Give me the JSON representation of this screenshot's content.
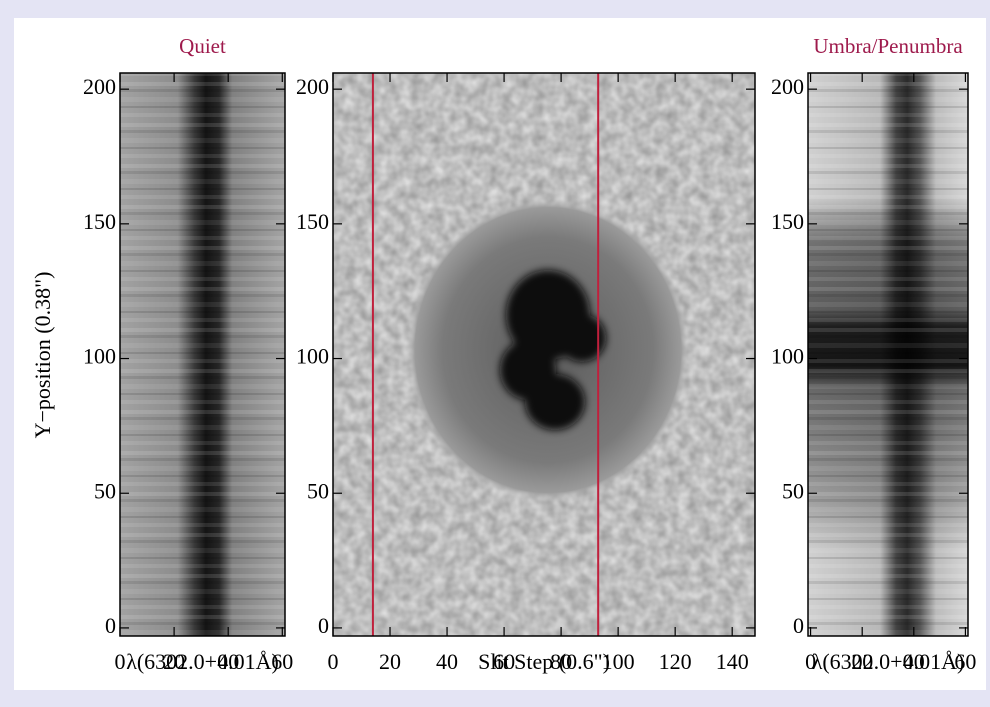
{
  "chart_data": [
    {
      "type": "image",
      "title": "Quiet",
      "title_color": "#9e1a4c",
      "xlabel": "λ(6302.0+0.01Å)",
      "ylabel": "Y−position (0.38\")",
      "xlim": [
        0,
        61
      ],
      "ylim": [
        -3,
        206
      ],
      "xticks": [
        0,
        20,
        40,
        60
      ],
      "yticks": [
        0,
        50,
        100,
        150,
        200
      ]
    },
    {
      "type": "image",
      "xlabel": "Slit Step (0.6\")",
      "xlim": [
        0,
        148
      ],
      "ylim": [
        -3,
        206
      ],
      "xticks": [
        0,
        20,
        40,
        60,
        80,
        100,
        120,
        140
      ],
      "yticks": [
        0,
        50,
        100,
        150,
        200
      ],
      "vlines": {
        "color": "#c0203c",
        "x": [
          14,
          93
        ]
      }
    },
    {
      "type": "image",
      "title": "Umbra/Penumbra",
      "title_color": "#9e1a4c",
      "xlabel": "λ(6302.0+0.01Å)",
      "xlim": [
        -1,
        61
      ],
      "ylim": [
        -3,
        206
      ],
      "xticks": [
        0,
        20,
        40,
        60
      ],
      "yticks": [
        0,
        50,
        100,
        150,
        200
      ]
    }
  ]
}
